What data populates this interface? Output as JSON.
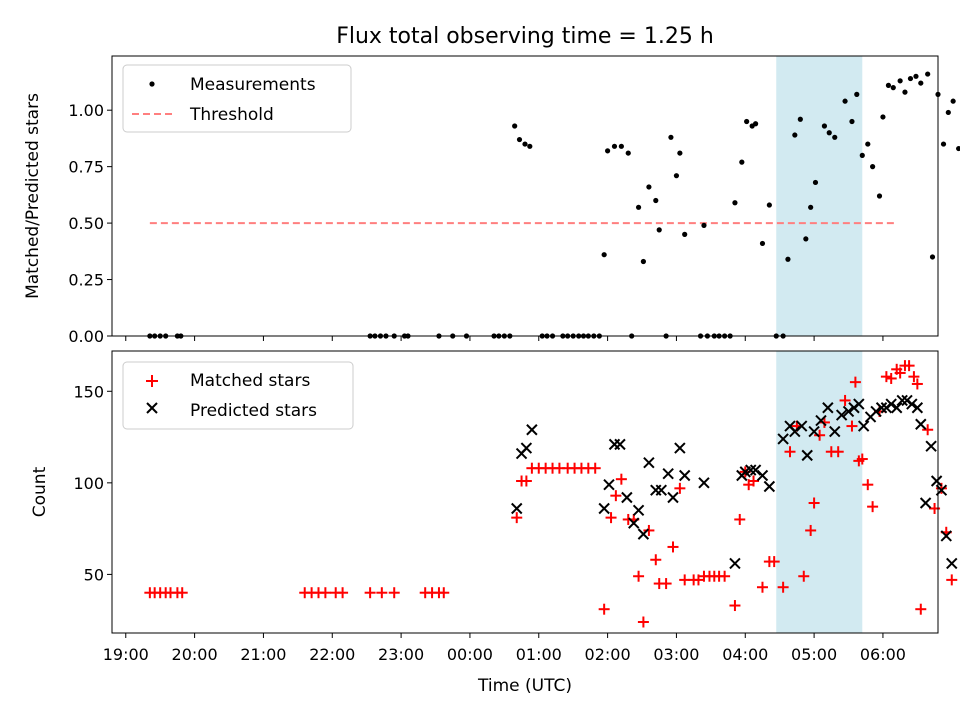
{
  "colors": {
    "measurement": "#000000",
    "threshold": "#ff7f7f",
    "matched": "#ff0000",
    "predicted": "#000000",
    "highlight": "#add8e6"
  },
  "chart_data": [
    {
      "type": "scatter",
      "title": "Flux total observing time = 1.25 h",
      "xlabel": "",
      "ylabel": "Matched/Predicted stars",
      "xlim": [
        -0.2,
        11.8
      ],
      "ylim": [
        0,
        1.24
      ],
      "yticks": [
        0.0,
        0.25,
        0.5,
        0.75,
        1.0
      ],
      "ytick_labels": [
        "0.00",
        "0.25",
        "0.50",
        "0.75",
        "1.00"
      ],
      "highlight_span": [
        9.45,
        10.7
      ],
      "legend": {
        "placement": "upper-left",
        "entries": [
          "Measurements",
          "Threshold"
        ]
      },
      "threshold": {
        "name": "Threshold",
        "y": 0.5,
        "x_range": [
          0.35,
          11.2
        ]
      },
      "series": [
        {
          "name": "Measurements",
          "marker": "dot",
          "points": [
            [
              0.35,
              0
            ],
            [
              0.42,
              0
            ],
            [
              0.5,
              0
            ],
            [
              0.58,
              0
            ],
            [
              0.75,
              0
            ],
            [
              0.8,
              0
            ],
            [
              3.55,
              0
            ],
            [
              3.62,
              0
            ],
            [
              3.7,
              0
            ],
            [
              3.78,
              0
            ],
            [
              3.9,
              0
            ],
            [
              4.05,
              0
            ],
            [
              4.1,
              0
            ],
            [
              4.55,
              0
            ],
            [
              4.75,
              0
            ],
            [
              4.95,
              0
            ],
            [
              5.35,
              0
            ],
            [
              5.42,
              0
            ],
            [
              5.5,
              0
            ],
            [
              5.58,
              0
            ],
            [
              5.65,
              0.93
            ],
            [
              5.72,
              0.87
            ],
            [
              5.8,
              0.85
            ],
            [
              5.87,
              0.84
            ],
            [
              6.05,
              0
            ],
            [
              6.12,
              0
            ],
            [
              6.2,
              0
            ],
            [
              6.35,
              0
            ],
            [
              6.42,
              0
            ],
            [
              6.5,
              0
            ],
            [
              6.58,
              0
            ],
            [
              6.65,
              0
            ],
            [
              6.72,
              0
            ],
            [
              6.8,
              0
            ],
            [
              6.88,
              0
            ],
            [
              6.95,
              0.36
            ],
            [
              7.0,
              0.82
            ],
            [
              7.1,
              0.84
            ],
            [
              7.2,
              0.84
            ],
            [
              7.3,
              0.81
            ],
            [
              7.35,
              0
            ],
            [
              7.45,
              0.57
            ],
            [
              7.52,
              0.33
            ],
            [
              7.6,
              0.66
            ],
            [
              7.7,
              0.6
            ],
            [
              7.75,
              0.47
            ],
            [
              7.85,
              0
            ],
            [
              7.92,
              0.88
            ],
            [
              8.0,
              0.71
            ],
            [
              8.05,
              0.81
            ],
            [
              8.12,
              0.45
            ],
            [
              8.35,
              0
            ],
            [
              8.4,
              0.49
            ],
            [
              8.45,
              0
            ],
            [
              8.55,
              0
            ],
            [
              8.62,
              0
            ],
            [
              8.7,
              0
            ],
            [
              8.78,
              0
            ],
            [
              8.85,
              0.59
            ],
            [
              8.95,
              0.77
            ],
            [
              9.02,
              0.95
            ],
            [
              9.1,
              0.93
            ],
            [
              9.15,
              0.94
            ],
            [
              9.25,
              0.41
            ],
            [
              9.35,
              0.58
            ],
            [
              9.45,
              0
            ],
            [
              9.55,
              0
            ],
            [
              9.62,
              0.34
            ],
            [
              9.72,
              0.89
            ],
            [
              9.8,
              0.96
            ],
            [
              9.88,
              0.43
            ],
            [
              9.95,
              0.57
            ],
            [
              10.02,
              0.68
            ],
            [
              10.15,
              0.93
            ],
            [
              10.22,
              0.9
            ],
            [
              10.3,
              0.88
            ],
            [
              10.45,
              1.04
            ],
            [
              10.55,
              0.95
            ],
            [
              10.62,
              1.07
            ],
            [
              10.7,
              0.8
            ],
            [
              10.78,
              0.85
            ],
            [
              10.85,
              0.75
            ],
            [
              10.95,
              0.62
            ],
            [
              11.0,
              0.97
            ],
            [
              11.08,
              1.11
            ],
            [
              11.15,
              1.1
            ],
            [
              11.25,
              1.13
            ],
            [
              11.32,
              1.08
            ],
            [
              11.4,
              1.14
            ],
            [
              11.48,
              1.15
            ],
            [
              11.55,
              1.12
            ],
            [
              11.65,
              1.16
            ],
            [
              11.72,
              0.35
            ],
            [
              11.8,
              1.07
            ],
            [
              11.88,
              0.85
            ],
            [
              11.95,
              0.99
            ],
            [
              12.02,
              1.04
            ],
            [
              12.1,
              0.83
            ]
          ]
        }
      ]
    },
    {
      "type": "scatter",
      "title": "",
      "xlabel": "Time (UTC)",
      "ylabel": "Count",
      "xlim": [
        -0.2,
        11.8
      ],
      "ylim": [
        18,
        172
      ],
      "yticks": [
        50,
        100,
        150
      ],
      "ytick_labels": [
        "50",
        "100",
        "150"
      ],
      "xticks": [
        0,
        1,
        2,
        3,
        4,
        5,
        6,
        7,
        8,
        9,
        10,
        11
      ],
      "xtick_labels": [
        "19:00",
        "20:00",
        "21:00",
        "22:00",
        "23:00",
        "00:00",
        "01:00",
        "02:00",
        "03:00",
        "04:00",
        "05:00",
        "06:00"
      ],
      "highlight_span": [
        9.45,
        10.7
      ],
      "legend": {
        "placement": "upper-left",
        "entries": [
          "Matched stars",
          "Predicted stars"
        ]
      },
      "series": [
        {
          "name": "Matched stars",
          "marker": "plus",
          "points": [
            [
              0.35,
              40
            ],
            [
              0.42,
              40
            ],
            [
              0.5,
              40
            ],
            [
              0.58,
              40
            ],
            [
              0.65,
              40
            ],
            [
              0.75,
              40
            ],
            [
              0.82,
              40
            ],
            [
              2.6,
              40
            ],
            [
              2.7,
              40
            ],
            [
              2.8,
              40
            ],
            [
              2.9,
              40
            ],
            [
              3.05,
              40
            ],
            [
              3.15,
              40
            ],
            [
              3.55,
              40
            ],
            [
              3.72,
              40
            ],
            [
              3.9,
              40
            ],
            [
              4.35,
              40
            ],
            [
              4.45,
              40
            ],
            [
              4.55,
              40
            ],
            [
              4.62,
              40
            ],
            [
              5.68,
              81
            ],
            [
              5.75,
              101
            ],
            [
              5.82,
              101
            ],
            [
              5.9,
              108
            ],
            [
              6.0,
              108
            ],
            [
              6.1,
              108
            ],
            [
              6.2,
              108
            ],
            [
              6.3,
              108
            ],
            [
              6.42,
              108
            ],
            [
              6.52,
              108
            ],
            [
              6.62,
              108
            ],
            [
              6.72,
              108
            ],
            [
              6.82,
              108
            ],
            [
              6.95,
              31
            ],
            [
              7.05,
              81
            ],
            [
              7.12,
              93
            ],
            [
              7.2,
              102
            ],
            [
              7.3,
              80
            ],
            [
              7.38,
              80
            ],
            [
              7.45,
              49
            ],
            [
              7.52,
              24
            ],
            [
              7.6,
              74
            ],
            [
              7.7,
              58
            ],
            [
              7.75,
              45
            ],
            [
              7.85,
              45
            ],
            [
              7.95,
              65
            ],
            [
              8.05,
              97
            ],
            [
              8.12,
              47
            ],
            [
              8.25,
              47
            ],
            [
              8.32,
              47
            ],
            [
              8.4,
              49
            ],
            [
              8.48,
              49
            ],
            [
              8.55,
              49
            ],
            [
              8.62,
              49
            ],
            [
              8.7,
              49
            ],
            [
              8.85,
              33
            ],
            [
              8.92,
              80
            ],
            [
              9.0,
              106
            ],
            [
              9.05,
              99
            ],
            [
              9.12,
              101
            ],
            [
              9.25,
              43
            ],
            [
              9.35,
              57
            ],
            [
              9.42,
              57
            ],
            [
              9.55,
              43
            ],
            [
              9.65,
              117
            ],
            [
              9.75,
              131
            ],
            [
              9.85,
              49
            ],
            [
              9.95,
              74
            ],
            [
              10.0,
              89
            ],
            [
              10.08,
              126
            ],
            [
              10.15,
              133
            ],
            [
              10.25,
              117
            ],
            [
              10.35,
              117
            ],
            [
              10.45,
              145
            ],
            [
              10.55,
              131
            ],
            [
              10.6,
              155
            ],
            [
              10.65,
              112
            ],
            [
              10.7,
              113
            ],
            [
              10.78,
              99
            ],
            [
              10.85,
              87
            ],
            [
              10.95,
              139
            ],
            [
              11.05,
              158
            ],
            [
              11.12,
              157
            ],
            [
              11.2,
              162
            ],
            [
              11.25,
              160
            ],
            [
              11.32,
              164
            ],
            [
              11.38,
              164
            ],
            [
              11.45,
              158
            ],
            [
              11.5,
              154
            ],
            [
              11.55,
              31
            ],
            [
              11.65,
              129
            ],
            [
              11.75,
              86
            ],
            [
              11.85,
              97
            ],
            [
              11.92,
              73
            ],
            [
              12.0,
              47
            ]
          ]
        },
        {
          "name": "Predicted stars",
          "marker": "x",
          "points": [
            [
              5.68,
              86
            ],
            [
              5.75,
              116
            ],
            [
              5.82,
              119
            ],
            [
              5.9,
              129
            ],
            [
              6.95,
              86
            ],
            [
              7.02,
              99
            ],
            [
              7.1,
              121
            ],
            [
              7.18,
              121
            ],
            [
              7.28,
              92
            ],
            [
              7.38,
              78
            ],
            [
              7.45,
              85
            ],
            [
              7.52,
              72
            ],
            [
              7.6,
              111
            ],
            [
              7.7,
              96
            ],
            [
              7.78,
              96
            ],
            [
              7.88,
              105
            ],
            [
              7.95,
              92
            ],
            [
              8.05,
              119
            ],
            [
              8.12,
              104
            ],
            [
              8.4,
              100
            ],
            [
              8.85,
              56
            ],
            [
              8.95,
              104
            ],
            [
              9.0,
              106
            ],
            [
              9.08,
              107
            ],
            [
              9.15,
              107
            ],
            [
              9.25,
              104
            ],
            [
              9.35,
              98
            ],
            [
              9.55,
              124
            ],
            [
              9.65,
              131
            ],
            [
              9.72,
              128
            ],
            [
              9.82,
              131
            ],
            [
              9.9,
              115
            ],
            [
              10.0,
              128
            ],
            [
              10.1,
              134
            ],
            [
              10.2,
              141
            ],
            [
              10.3,
              128
            ],
            [
              10.4,
              137
            ],
            [
              10.5,
              139
            ],
            [
              10.58,
              141
            ],
            [
              10.65,
              143
            ],
            [
              10.72,
              131
            ],
            [
              10.82,
              136
            ],
            [
              10.9,
              139
            ],
            [
              10.98,
              141
            ],
            [
              11.05,
              141
            ],
            [
              11.12,
              143
            ],
            [
              11.2,
              141
            ],
            [
              11.28,
              145
            ],
            [
              11.35,
              145
            ],
            [
              11.42,
              143
            ],
            [
              11.5,
              141
            ],
            [
              11.55,
              132
            ],
            [
              11.62,
              89
            ],
            [
              11.7,
              120
            ],
            [
              11.78,
              101
            ],
            [
              11.85,
              96
            ],
            [
              11.92,
              71
            ],
            [
              12.0,
              56
            ]
          ]
        }
      ]
    }
  ]
}
